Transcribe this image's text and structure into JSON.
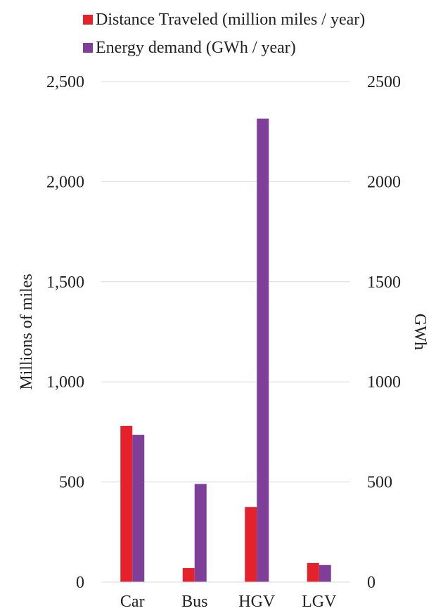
{
  "chart_data": {
    "type": "bar",
    "categories": [
      "Car",
      "Bus",
      "HGV",
      "LGV"
    ],
    "series": [
      {
        "name": "Distance Traveled (million miles / year)",
        "axis": "left",
        "color": "#e3222b",
        "values": [
          780,
          70,
          375,
          95
        ]
      },
      {
        "name": "Energy demand (GWh / year)",
        "axis": "right",
        "color": "#7f3f98",
        "values": [
          735,
          490,
          2315,
          85
        ]
      }
    ],
    "y_left": {
      "label": "Millions of miles",
      "range": [
        0,
        2500
      ],
      "ticks": [
        "0",
        "500",
        "1,000",
        "1,500",
        "2,000",
        "2,500"
      ]
    },
    "y_right": {
      "label": "GWh",
      "range": [
        0,
        2500
      ],
      "ticks": [
        "0",
        "500",
        "1000",
        "1500",
        "2000",
        "2500"
      ]
    },
    "grid": true,
    "legend_position": "top"
  }
}
